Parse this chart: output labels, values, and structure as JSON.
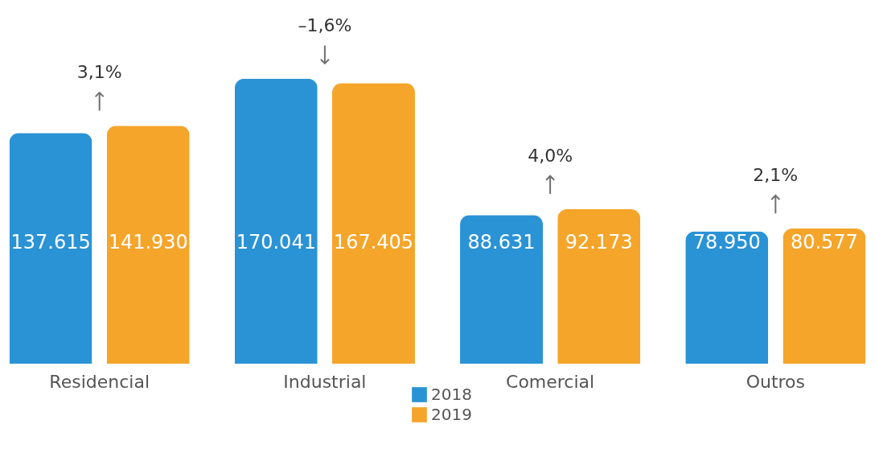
{
  "chart_data": {
    "type": "bar",
    "categories": [
      "Residencial",
      "Industrial",
      "Comercial",
      "Outros"
    ],
    "series": [
      {
        "name": "2018",
        "color": "#2a93d5",
        "values": [
          137615,
          170041,
          88631,
          78950
        ],
        "value_labels": [
          "137.615",
          "170.041",
          "88.631",
          "78.950"
        ]
      },
      {
        "name": "2019",
        "color": "#f5a52a",
        "values": [
          141930,
          167405,
          92173,
          80577
        ],
        "value_labels": [
          "141.930",
          "167.405",
          "92.173",
          "80.577"
        ]
      }
    ],
    "annotations": [
      "3,1%",
      "–1,6%",
      "4,0%",
      "2,1%"
    ],
    "legend": "bottom"
  }
}
